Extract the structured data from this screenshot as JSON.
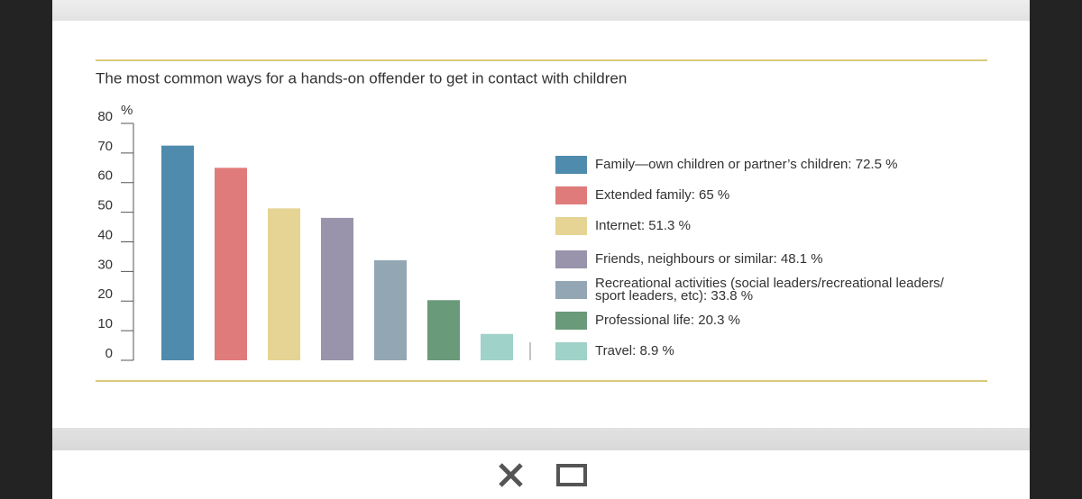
{
  "chart_data": {
    "type": "bar",
    "title": "The most common ways for a hands-on offender to get in contact with children",
    "y_unit": "%",
    "categories": [
      "Family—own children or partner’s children: 72.5 %",
      "Extended family: 65 %",
      "Internet: 51.3 %",
      "Friends, neighbours or similar: 48.1 %",
      "Recreational activities (social leaders/recreational leaders/\nsport leaders, etc): 33.8 %",
      "Professional life: 20.3 %",
      "Travel: 8.9 %"
    ],
    "values": [
      72.5,
      65,
      51.3,
      48.1,
      33.8,
      20.3,
      8.9
    ],
    "colors": [
      "#4f8bad",
      "#e07b7b",
      "#e5d493",
      "#9993ab",
      "#93a6b3",
      "#699a79",
      "#9fd2c9"
    ],
    "ylim": [
      0,
      80
    ],
    "yticks": [
      0,
      10,
      20,
      30,
      40,
      50,
      60,
      70,
      80
    ],
    "legend": "right"
  }
}
